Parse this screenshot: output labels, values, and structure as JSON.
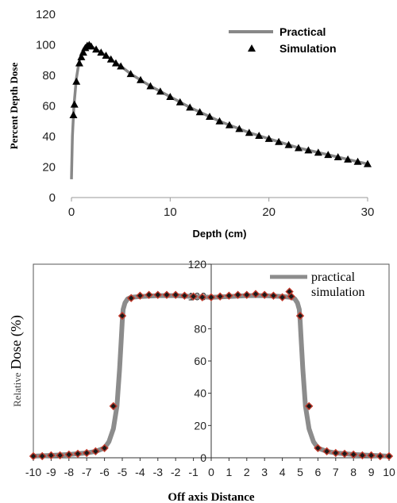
{
  "chart_data": [
    {
      "type": "line",
      "xlabel": "Depth (cm)",
      "ylabel": "Percent Depth Dose",
      "xlim": [
        0,
        30
      ],
      "ylim": [
        0,
        120
      ],
      "xticks": [
        "0",
        "10",
        "20",
        "30"
      ],
      "yticks": [
        "0",
        "20",
        "40",
        "60",
        "80",
        "100",
        "120"
      ],
      "legend_position": "top-right",
      "series": [
        {
          "name": "Practical",
          "style": "line",
          "color": "#888888",
          "x": [
            0,
            0.1,
            0.25,
            0.5,
            0.75,
            1.0,
            1.25,
            1.5,
            1.75,
            2.0,
            2.5,
            3.0,
            3.5,
            4.0,
            4.5,
            5.0,
            6,
            7,
            8,
            9,
            10,
            11,
            12,
            13,
            14,
            15,
            16,
            17,
            18,
            19,
            20,
            21,
            22,
            23,
            24,
            25,
            26,
            27,
            28,
            29,
            30
          ],
          "y": [
            12,
            40,
            60,
            78,
            88,
            94,
            97.5,
            99.5,
            100,
            99,
            97,
            95,
            93,
            90.5,
            88,
            86,
            81,
            77,
            73,
            69.5,
            66,
            62.5,
            59,
            56,
            53,
            50,
            47.5,
            45,
            42.5,
            40.5,
            38.5,
            36.5,
            34.5,
            32.5,
            31,
            29.5,
            28,
            26.5,
            25,
            23.5,
            22
          ]
        },
        {
          "name": "Simulation",
          "style": "marker",
          "marker": "triangle",
          "color": "#000000",
          "x": [
            0.2,
            0.3,
            0.5,
            0.8,
            1.0,
            1.2,
            1.4,
            1.6,
            1.8,
            2.0,
            2.5,
            3.0,
            3.5,
            4.0,
            4.5,
            5.0,
            6,
            7,
            8,
            9,
            10,
            11,
            12,
            13,
            14,
            15,
            16,
            17,
            18,
            19,
            20,
            21,
            22,
            23,
            24,
            25,
            26,
            27,
            28,
            29,
            30
          ],
          "y": [
            54,
            61,
            76,
            88,
            92,
            95,
            98,
            99.5,
            100,
            99,
            97,
            95,
            93,
            90.5,
            88,
            86,
            81,
            77,
            73,
            69.5,
            66,
            62.5,
            59,
            56,
            53,
            50,
            47.5,
            45,
            42.5,
            40.5,
            38.5,
            36.5,
            34.5,
            32.5,
            31,
            29.5,
            28,
            26.5,
            25,
            23.5,
            22
          ]
        }
      ]
    },
    {
      "type": "line",
      "xlabel": "Off axis Distance",
      "ylabel_prefix": "Relative",
      "ylabel_main": "Dose (%)",
      "xlim": [
        -10,
        10
      ],
      "ylim": [
        0,
        120
      ],
      "xticks": [
        "-10",
        "-9",
        "-8",
        "-7",
        "-6",
        "-5",
        "-4",
        "-3",
        "-2",
        "-1",
        "0",
        "1",
        "2",
        "3",
        "4",
        "5",
        "6",
        "7",
        "8",
        "9",
        "10"
      ],
      "yticks": [
        "0",
        "20",
        "40",
        "60",
        "80",
        "100",
        "120"
      ],
      "legend_position": "top-right",
      "series": [
        {
          "name": "practical",
          "style": "line",
          "color": "#8c8c8c",
          "x": [
            -10,
            -9,
            -8,
            -7,
            -6.5,
            -6,
            -5.75,
            -5.5,
            -5.3,
            -5.15,
            -5.05,
            -5,
            -4.95,
            -4.85,
            -4.7,
            -4.5,
            -4,
            -3,
            -2,
            -1,
            0,
            1,
            2,
            3,
            4,
            4.5,
            4.7,
            4.85,
            4.95,
            5,
            5.05,
            5.15,
            5.3,
            5.5,
            5.75,
            6,
            6.5,
            7,
            8,
            9,
            10
          ],
          "y": [
            1,
            1.5,
            2,
            3,
            4,
            6,
            10,
            18,
            32,
            55,
            75,
            85,
            92,
            96,
            98.5,
            99.5,
            100,
            100.5,
            100.5,
            100,
            99.5,
            100,
            100.5,
            100.5,
            100,
            99.5,
            98.5,
            96,
            92,
            85,
            75,
            55,
            32,
            18,
            10,
            6,
            4,
            3,
            2,
            1.5,
            1
          ]
        },
        {
          "name": "simulation",
          "style": "marker",
          "marker": "diamond",
          "color": "#1a1a1a",
          "edge_color": "#c0392b",
          "x": [
            -10,
            -9.5,
            -9,
            -8.5,
            -8,
            -7.5,
            -7,
            -6.5,
            -6,
            -5.5,
            -5,
            -4.5,
            -4,
            -3.5,
            -3,
            -2.5,
            -2,
            -1.5,
            -1,
            -0.5,
            0,
            0.5,
            1,
            1.5,
            2,
            2.5,
            3,
            3.5,
            4,
            4.4,
            4.5,
            5,
            5.5,
            6,
            6.5,
            7,
            7.5,
            8,
            8.5,
            9,
            9.5,
            10
          ],
          "y": [
            1,
            1,
            1.5,
            1.5,
            2,
            2.5,
            3,
            4,
            6,
            32,
            88,
            99,
            100.5,
            101,
            101,
            101,
            101,
            100.5,
            100,
            99.5,
            99.5,
            100,
            100.5,
            101,
            101,
            101.5,
            101,
            100.5,
            99.5,
            103,
            100,
            88,
            32,
            6,
            4,
            3,
            2.5,
            2,
            1.5,
            1.5,
            1,
            1
          ]
        }
      ]
    }
  ]
}
